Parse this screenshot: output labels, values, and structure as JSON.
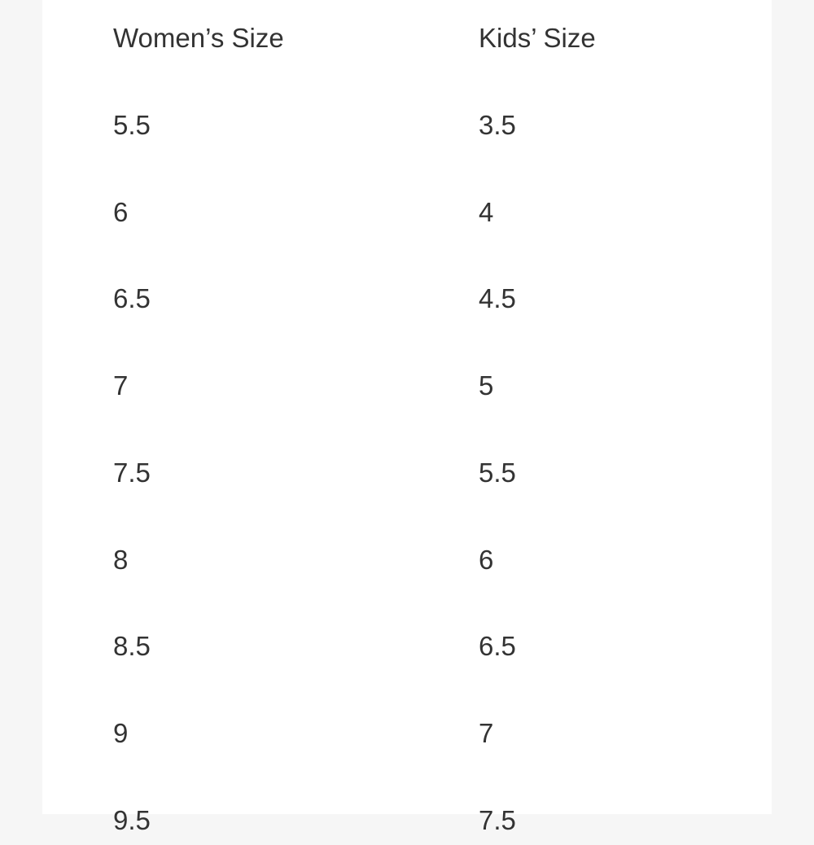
{
  "table": {
    "headers": [
      "Women’s Size",
      "Kids’ Size"
    ],
    "rows": [
      [
        "5.5",
        "3.5"
      ],
      [
        "6",
        "4"
      ],
      [
        "6.5",
        "4.5"
      ],
      [
        "7",
        "5"
      ],
      [
        "7.5",
        "5.5"
      ],
      [
        "8",
        "6"
      ],
      [
        "8.5",
        "6.5"
      ],
      [
        "9",
        "7"
      ],
      [
        "9.5",
        "7.5"
      ]
    ]
  }
}
